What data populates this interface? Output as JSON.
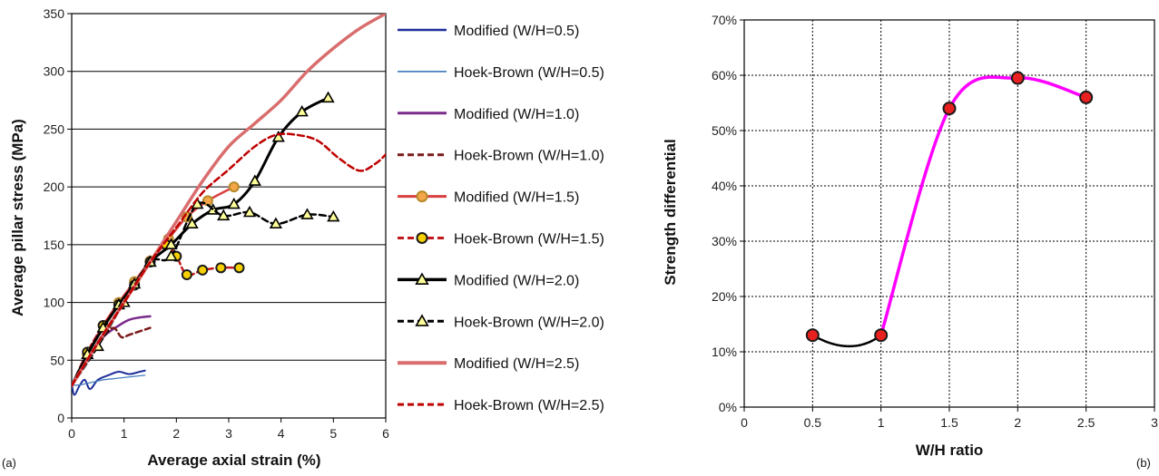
{
  "chart_data": [
    {
      "type": "line",
      "panel_label": "(a)",
      "xlabel": "Average axial strain (%)",
      "ylabel": "Average pillar stress (MPa)",
      "xlim": [
        0,
        6
      ],
      "ylim": [
        0,
        350
      ],
      "xticks": [
        "0",
        "1",
        "2",
        "3",
        "4",
        "5",
        "6"
      ],
      "yticks": [
        "0",
        "50",
        "100",
        "150",
        "200",
        "250",
        "300",
        "350"
      ],
      "grid": "horizontal",
      "legend_position": "right",
      "series": [
        {
          "name": "Modified (W/H=0.5)",
          "color": "#1f2f99",
          "dash": "solid",
          "width": 2,
          "marker": "none",
          "x": [
            0,
            0.05,
            0.15,
            0.25,
            0.35,
            0.5,
            0.7,
            0.9,
            1.1,
            1.3,
            1.4
          ],
          "y": [
            30,
            20,
            28,
            33,
            25,
            33,
            37,
            40,
            38,
            40,
            41
          ]
        },
        {
          "name": "Hoek-Brown (W/H=0.5)",
          "color": "#4a7fc1",
          "dash": "solid",
          "width": 1.3,
          "marker": "none",
          "x": [
            0,
            0.2,
            0.4,
            0.6,
            0.8,
            1.0,
            1.2,
            1.4
          ],
          "y": [
            28,
            29,
            31,
            33,
            34,
            35,
            36,
            37
          ]
        },
        {
          "name": "Modified (W/H=1.0)",
          "color": "#7a2a8a",
          "dash": "solid",
          "width": 2.5,
          "marker": "none",
          "x": [
            0,
            0.3,
            0.6,
            0.9,
            1.1,
            1.3,
            1.5
          ],
          "y": [
            28,
            52,
            70,
            80,
            85,
            87,
            88
          ]
        },
        {
          "name": "Hoek-Brown (W/H=1.0)",
          "color": "#7a1a1a",
          "dash": "dashed",
          "width": 2.5,
          "marker": "none",
          "x": [
            0,
            0.3,
            0.6,
            0.8,
            0.95,
            1.1,
            1.3,
            1.5
          ],
          "y": [
            28,
            50,
            70,
            78,
            70,
            72,
            75,
            78
          ]
        },
        {
          "name": "Modified (W/H=1.5)",
          "color": "#d94040",
          "dash": "solid",
          "width": 2.5,
          "marker": "circle",
          "marker_fill": "#f4a64a",
          "marker_stroke": "#b58a2a",
          "x": [
            0,
            0.3,
            0.6,
            0.9,
            1.2,
            1.5,
            1.85,
            2.2,
            2.6,
            3.1
          ],
          "y": [
            28,
            55,
            80,
            100,
            118,
            136,
            155,
            174,
            188,
            200
          ]
        },
        {
          "name": "Hoek-Brown (W/H=1.5)",
          "color": "#c0181b",
          "dash": "dashed",
          "width": 2.5,
          "marker": "circle",
          "marker_fill": "#f5d000",
          "marker_stroke": "#1a1a1a",
          "x": [
            0,
            0.3,
            0.6,
            0.9,
            1.2,
            1.5,
            1.8,
            2.0,
            2.2,
            2.5,
            2.85,
            3.2
          ],
          "y": [
            28,
            57,
            80,
            98,
            115,
            135,
            150,
            140,
            124,
            128,
            130,
            130
          ]
        },
        {
          "name": "Modified (W/H=2.0)",
          "color": "#000000",
          "dash": "solid",
          "width": 3,
          "marker": "triangle",
          "marker_fill": "#ffff99",
          "marker_stroke": "#000000",
          "x": [
            0,
            0.3,
            0.6,
            0.9,
            1.2,
            1.5,
            1.9,
            2.3,
            2.7,
            3.1,
            3.5,
            3.95,
            4.4,
            4.9
          ],
          "y": [
            28,
            55,
            78,
            98,
            116,
            135,
            150,
            168,
            180,
            185,
            205,
            243,
            265,
            277
          ]
        },
        {
          "name": "Hoek-Brown (W/H=2.0)",
          "color": "#000000",
          "dash": "dashed",
          "width": 2.5,
          "marker": "triangle",
          "marker_fill": "#ffff99",
          "marker_stroke": "#000000",
          "x": [
            0,
            0.5,
            1.0,
            1.5,
            1.9,
            2.4,
            2.9,
            3.4,
            3.9,
            4.5,
            5.0
          ],
          "y": [
            28,
            62,
            100,
            135,
            140,
            185,
            175,
            178,
            168,
            176,
            174
          ]
        },
        {
          "name": "Modified (W/H=2.5)",
          "color": "#d96d6d",
          "dash": "solid",
          "width": 3.5,
          "marker": "none",
          "x": [
            0,
            0.5,
            1.0,
            1.5,
            2.0,
            2.5,
            3.0,
            3.5,
            4.0,
            4.5,
            5.0,
            5.5,
            6.0
          ],
          "y": [
            28,
            65,
            100,
            135,
            170,
            205,
            235,
            255,
            275,
            300,
            320,
            337,
            350
          ]
        },
        {
          "name": "Hoek-Brown (W/H=2.5)",
          "color": "#c00000",
          "dash": "dashed",
          "width": 2.5,
          "marker": "none",
          "x": [
            0,
            0.5,
            1.0,
            1.5,
            2.0,
            2.5,
            3.0,
            3.5,
            3.9,
            4.3,
            4.7,
            5.1,
            5.5,
            5.8,
            6.0
          ],
          "y": [
            28,
            65,
            100,
            135,
            165,
            195,
            215,
            235,
            245,
            245,
            240,
            225,
            214,
            220,
            228
          ]
        }
      ]
    },
    {
      "type": "line",
      "panel_label": "(b)",
      "xlabel": "W/H ratio",
      "ylabel": "Strength differential",
      "xlim": [
        0,
        3
      ],
      "ylim": [
        0,
        0.7
      ],
      "xticks": [
        "0",
        "0.5",
        "1",
        "1.5",
        "2",
        "2.5",
        "3"
      ],
      "yticks": [
        "0%",
        "10%",
        "20%",
        "30%",
        "40%",
        "50%",
        "60%",
        "70%"
      ],
      "grid": "both-dotted",
      "series": [
        {
          "name": "",
          "marker": "circle",
          "x": [
            0.5,
            1.0,
            1.5,
            2.0,
            2.5
          ],
          "y": [
            0.13,
            0.13,
            0.54,
            0.595,
            0.56
          ],
          "curve_color_low": "#000000",
          "curve_color_high": "#ff00ff",
          "marker_fill": "#e8201f",
          "marker_stroke": "#1a1a1a"
        }
      ]
    }
  ]
}
